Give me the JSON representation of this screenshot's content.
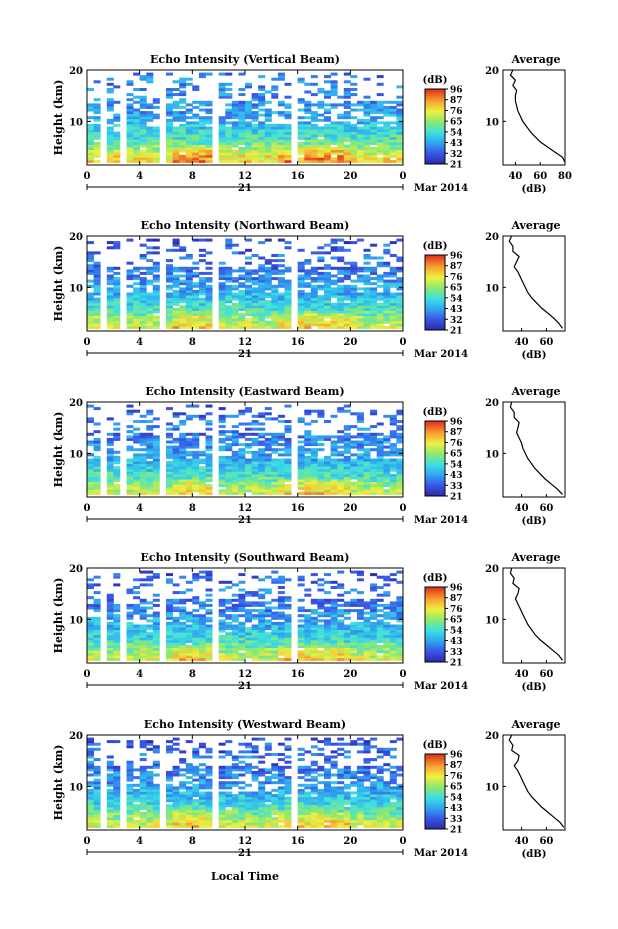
{
  "figure": {
    "date_label": "Mar 2014",
    "day_label": "21",
    "xlabel": "Local Time"
  },
  "chart_data": [
    {
      "type": "heatmap",
      "title": "Echo Intensity (Vertical Beam)",
      "ylabel": "Height (km)",
      "xticks": [
        "0",
        "4",
        "8",
        "12",
        "16",
        "20",
        "0"
      ],
      "yticks": [
        "20",
        "10"
      ],
      "xlim": [
        0,
        24
      ],
      "ylim": [
        1.5,
        20
      ],
      "colorbar": {
        "unit": "(dB)",
        "ticks": [
          "96",
          "87",
          "76",
          "65",
          "54",
          "43",
          "32",
          "21"
        ],
        "vmin": 21,
        "vmax": 96
      },
      "profile": {
        "title": "Average",
        "xlabel": "(dB)",
        "xticks": [
          "40",
          "60",
          "80"
        ],
        "xlim": [
          30,
          80
        ],
        "yticks": [
          "20",
          "10"
        ],
        "heights": [
          2,
          3,
          4,
          5,
          6,
          7,
          8,
          9,
          10,
          11,
          12,
          13,
          14,
          15,
          16,
          17,
          18,
          19,
          20
        ],
        "values": [
          80,
          78,
          72,
          66,
          60,
          56,
          52,
          49,
          46,
          44,
          42,
          41,
          40,
          40,
          41,
          38,
          40,
          36,
          38
        ]
      }
    },
    {
      "type": "heatmap",
      "title": "Echo Intensity (Northward Beam)",
      "ylabel": "Height (km)",
      "xticks": [
        "0",
        "4",
        "8",
        "12",
        "16",
        "20",
        "0"
      ],
      "yticks": [
        "20",
        "10"
      ],
      "xlim": [
        0,
        24
      ],
      "ylim": [
        1.5,
        20
      ],
      "colorbar": {
        "unit": "(dB)",
        "ticks": [
          "96",
          "87",
          "76",
          "65",
          "54",
          "43",
          "32",
          "21"
        ],
        "vmin": 21,
        "vmax": 96
      },
      "profile": {
        "title": "Average",
        "xlabel": "(dB)",
        "xticks": [
          "40",
          "60"
        ],
        "xlim": [
          25,
          75
        ],
        "yticks": [
          "20",
          "10"
        ],
        "heights": [
          2,
          3,
          4,
          5,
          6,
          7,
          8,
          9,
          10,
          11,
          12,
          13,
          14,
          15,
          16,
          17,
          18,
          19,
          20
        ],
        "values": [
          73,
          70,
          66,
          61,
          56,
          52,
          48,
          45,
          43,
          41,
          39,
          37,
          34,
          36,
          38,
          33,
          33,
          30,
          32
        ]
      }
    },
    {
      "type": "heatmap",
      "title": "Echo Intensity (Eastward Beam)",
      "ylabel": "Height (km)",
      "xticks": [
        "0",
        "4",
        "8",
        "12",
        "16",
        "20",
        "0"
      ],
      "yticks": [
        "20",
        "10"
      ],
      "xlim": [
        0,
        24
      ],
      "ylim": [
        1.5,
        20
      ],
      "colorbar": {
        "unit": "(dB)",
        "ticks": [
          "96",
          "87",
          "76",
          "65",
          "54",
          "43",
          "33",
          "21"
        ],
        "vmin": 21,
        "vmax": 96
      },
      "profile": {
        "title": "Average",
        "xlabel": "(dB)",
        "xticks": [
          "40",
          "60"
        ],
        "xlim": [
          25,
          75
        ],
        "yticks": [
          "20",
          "10"
        ],
        "heights": [
          2,
          3,
          4,
          5,
          6,
          7,
          8,
          9,
          10,
          11,
          12,
          13,
          14,
          15,
          16,
          17,
          18,
          19,
          20
        ],
        "values": [
          73,
          69,
          64,
          59,
          55,
          51,
          48,
          45,
          43,
          41,
          40,
          38,
          36,
          37,
          38,
          34,
          34,
          31,
          32
        ]
      }
    },
    {
      "type": "heatmap",
      "title": "Echo Intensity (Southward Beam)",
      "ylabel": "Height (km)",
      "xticks": [
        "0",
        "4",
        "8",
        "12",
        "16",
        "20",
        "0"
      ],
      "yticks": [
        "20",
        "10"
      ],
      "xlim": [
        0,
        24
      ],
      "ylim": [
        1.5,
        20
      ],
      "colorbar": {
        "unit": "(dB)",
        "ticks": [
          "96",
          "87",
          "76",
          "65",
          "54",
          "43",
          "33",
          "21"
        ],
        "vmin": 21,
        "vmax": 96
      },
      "profile": {
        "title": "Average",
        "xlabel": "(dB)",
        "xticks": [
          "40",
          "60"
        ],
        "xlim": [
          25,
          75
        ],
        "yticks": [
          "20",
          "10"
        ],
        "heights": [
          2,
          3,
          4,
          5,
          6,
          7,
          8,
          9,
          10,
          11,
          12,
          13,
          14,
          15,
          16,
          17,
          18,
          19,
          20
        ],
        "values": [
          73,
          70,
          65,
          60,
          55,
          51,
          48,
          45,
          43,
          41,
          39,
          37,
          35,
          37,
          38,
          33,
          34,
          31,
          32
        ]
      }
    },
    {
      "type": "heatmap",
      "title": "Echo Intensity (Westward Beam)",
      "ylabel": "Height (km)",
      "xticks": [
        "0",
        "4",
        "8",
        "12",
        "16",
        "20",
        "0"
      ],
      "yticks": [
        "20",
        "10"
      ],
      "xlim": [
        0,
        24
      ],
      "ylim": [
        1.5,
        20
      ],
      "colorbar": {
        "unit": "(dB)",
        "ticks": [
          "96",
          "87",
          "76",
          "65",
          "54",
          "43",
          "33",
          "21"
        ],
        "vmin": 21,
        "vmax": 96
      },
      "profile": {
        "title": "Average",
        "xlabel": "(dB)",
        "xticks": [
          "40",
          "60"
        ],
        "xlim": [
          25,
          75
        ],
        "yticks": [
          "20",
          "10"
        ],
        "heights": [
          2,
          3,
          4,
          5,
          6,
          7,
          8,
          9,
          10,
          11,
          12,
          13,
          14,
          15,
          16,
          17,
          18,
          19,
          20
        ],
        "values": [
          74,
          71,
          66,
          61,
          56,
          52,
          48,
          45,
          43,
          41,
          39,
          37,
          34,
          37,
          38,
          32,
          33,
          30,
          32
        ]
      }
    }
  ]
}
